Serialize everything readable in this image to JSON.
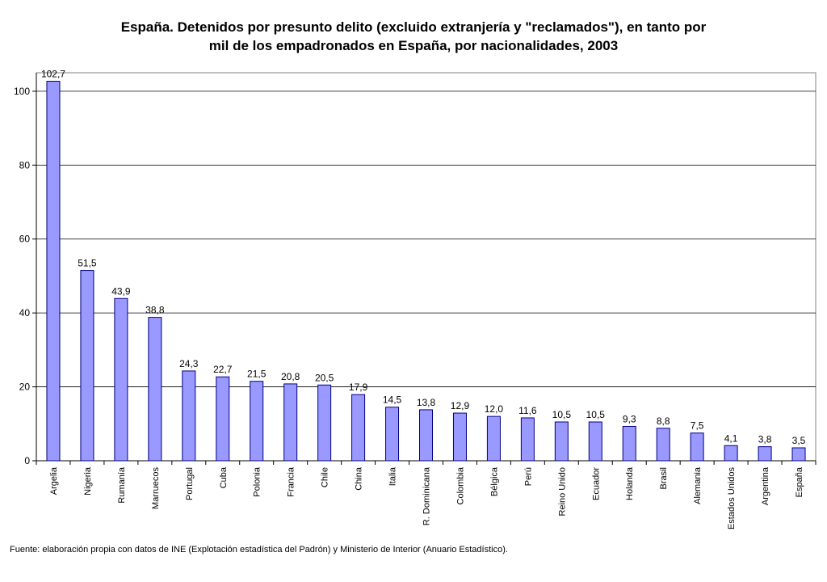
{
  "chart_data": {
    "type": "bar",
    "title_line1": "España. Detenidos por presunto delito (excluido extranjería y \"reclamados\"), en tanto por",
    "title_line2": "mil de los empadronados en España, por nacionalidades, 2003",
    "categories": [
      "Argelia",
      "Nigeria",
      "Rumanía",
      "Marruecos",
      "Portugal",
      "Cuba",
      "Polonia",
      "Francia",
      "Chile",
      "China",
      "Italia",
      "R. Dominicana",
      "Colombia",
      "Bélgica",
      "Perú",
      "Reino Unido",
      "Ecuador",
      "Holanda",
      "Brasil",
      "Alemania",
      "Estados Unidos",
      "Argentina",
      "España"
    ],
    "values": [
      102.7,
      51.5,
      43.9,
      38.8,
      24.3,
      22.7,
      21.5,
      20.8,
      20.5,
      17.9,
      14.5,
      13.8,
      12.9,
      12.0,
      11.6,
      10.5,
      10.5,
      9.3,
      8.8,
      7.5,
      4.1,
      3.8,
      3.5
    ],
    "value_labels": [
      "102,7",
      "51,5",
      "43,9",
      "38,8",
      "24,3",
      "22,7",
      "21,5",
      "20,8",
      "20,5",
      "17,9",
      "14,5",
      "13,8",
      "12,9",
      "12,0",
      "11,6",
      "10,5",
      "10,5",
      "9,3",
      "8,8",
      "7,5",
      "4,1",
      "3,8",
      "3,5"
    ],
    "yticks": [
      0,
      20,
      40,
      60,
      80,
      100
    ],
    "ylim": [
      0,
      105
    ],
    "grid": true,
    "legend": "none",
    "bar_color": "#9999ff",
    "bar_edge_color": "#000080"
  },
  "source": "Fuente: elaboración propia con datos de INE (Explotación estadística del Padrón) y Ministerio de Interior (Anuario Estadístico)."
}
